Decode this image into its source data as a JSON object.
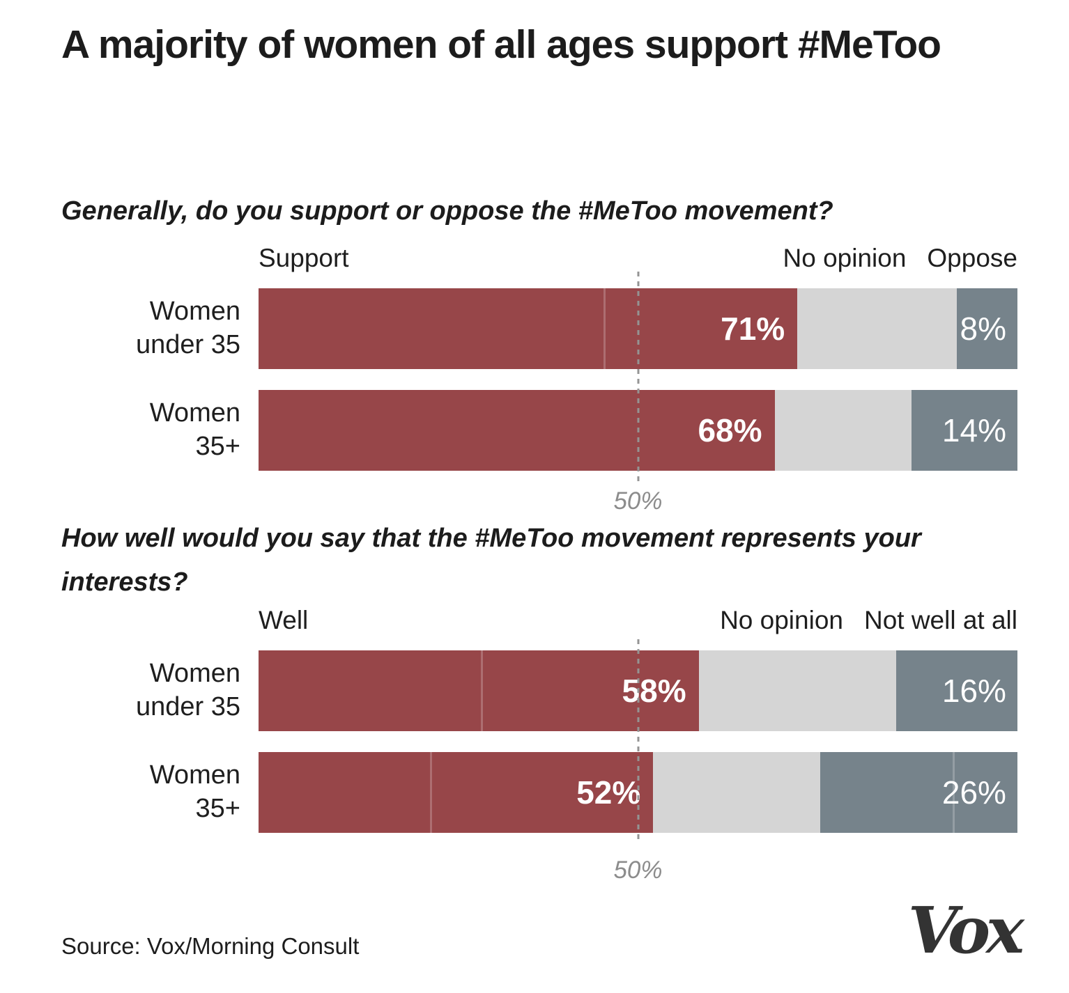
{
  "page": {
    "title": "A majority of women of all ages support #MeToo",
    "source": "Source: Vox/Morning Consult",
    "logo_text": "Vox"
  },
  "colors": {
    "support_red": "#974649",
    "no_opinion_gray": "#d5d5d5",
    "oppose_slate": "#76838b",
    "reference_gray": "#949494",
    "muted_label": "#8c8c8c",
    "text_dark": "#1c1c1c",
    "logo_dark": "#333333",
    "value_label_white": "#ffffff"
  },
  "chart_data": [
    {
      "type": "bar",
      "variant": "horizontal-stacked-100pct",
      "question": "Generally, do you support or oppose the #MeToo movement?",
      "series_labels": [
        "Support",
        "No opinion",
        "Oppose"
      ],
      "categories": [
        "Women under 35",
        "Women 35+"
      ],
      "xlim": [
        0,
        100
      ],
      "unit": "%",
      "grid": false,
      "reference_line": {
        "pct": 50,
        "label": "50%"
      },
      "rows": [
        {
          "category_lines": [
            "Women",
            "under 35"
          ],
          "values": [
            71,
            21,
            8
          ],
          "value_labels": [
            "71%",
            "8%"
          ],
          "hairlines_pct": [
            45.5
          ]
        },
        {
          "category_lines": [
            "Women",
            "35+"
          ],
          "values": [
            68,
            18,
            14
          ],
          "value_labels": [
            "68%",
            "14%"
          ],
          "hairlines_pct": []
        }
      ]
    },
    {
      "type": "bar",
      "variant": "horizontal-stacked-100pct",
      "question": "How well would you say that the #MeToo movement represents your interests?",
      "series_labels": [
        "Well",
        "No opinion",
        "Not well at all"
      ],
      "categories": [
        "Women under 35",
        "Women 35+"
      ],
      "xlim": [
        0,
        100
      ],
      "unit": "%",
      "grid": false,
      "reference_line": {
        "pct": 50,
        "label": "50%"
      },
      "rows": [
        {
          "category_lines": [
            "Women",
            "under 35"
          ],
          "values": [
            58,
            26,
            16
          ],
          "value_labels": [
            "58%",
            "16%"
          ],
          "hairlines_pct": [
            29.3
          ]
        },
        {
          "category_lines": [
            "Women",
            "35+"
          ],
          "values": [
            52,
            22,
            26
          ],
          "value_labels": [
            "52%",
            "26%"
          ],
          "hairlines_pct": [
            22.6,
            91.5
          ]
        }
      ]
    }
  ]
}
